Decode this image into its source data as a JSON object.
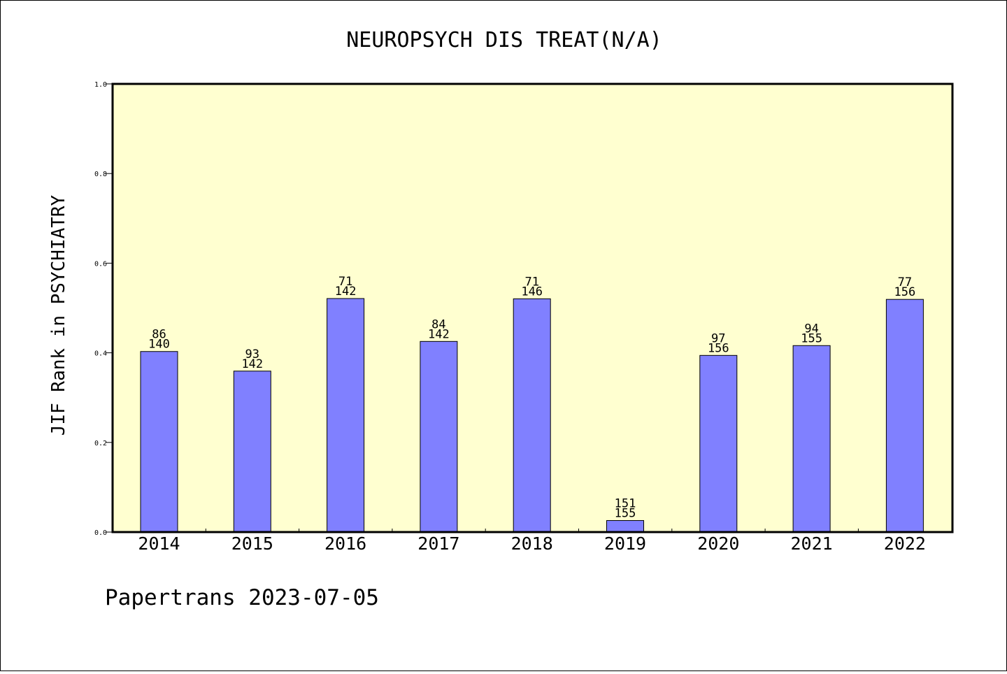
{
  "chart_data": {
    "type": "bar",
    "title": "NEUROPSYCH DIS TREAT(N/A)",
    "xlabel": "",
    "ylabel": "JIF Rank in PSYCHIATRY",
    "ylim": [
      0,
      1.0
    ],
    "yticks": [
      "0.0",
      "0.2",
      "0.4",
      "0.6",
      "0.8",
      "1.0"
    ],
    "categories": [
      "2014",
      "2015",
      "2016",
      "2017",
      "2018",
      "2019",
      "2020",
      "2021",
      "2022"
    ],
    "values": [
      0.4029,
      0.3592,
      0.5211,
      0.4254,
      0.5205,
      0.0258,
      0.3942,
      0.4161,
      0.5192
    ],
    "bar_labels": [
      {
        "rank": "86",
        "total": "140"
      },
      {
        "rank": "93",
        "total": "142"
      },
      {
        "rank": "71",
        "total": "142"
      },
      {
        "rank": "84",
        "total": "142"
      },
      {
        "rank": "71",
        "total": "146"
      },
      {
        "rank": "151",
        "total": "155"
      },
      {
        "rank": "97",
        "total": "156"
      },
      {
        "rank": "94",
        "total": "155"
      },
      {
        "rank": "77",
        "total": "156"
      }
    ],
    "colors": {
      "plot_background": "#ffffd0",
      "bar_fill": "#8080ff",
      "bar_stroke": "#000000"
    },
    "grid": false,
    "legend": "none"
  },
  "footer": "Papertrans 2023-07-05"
}
